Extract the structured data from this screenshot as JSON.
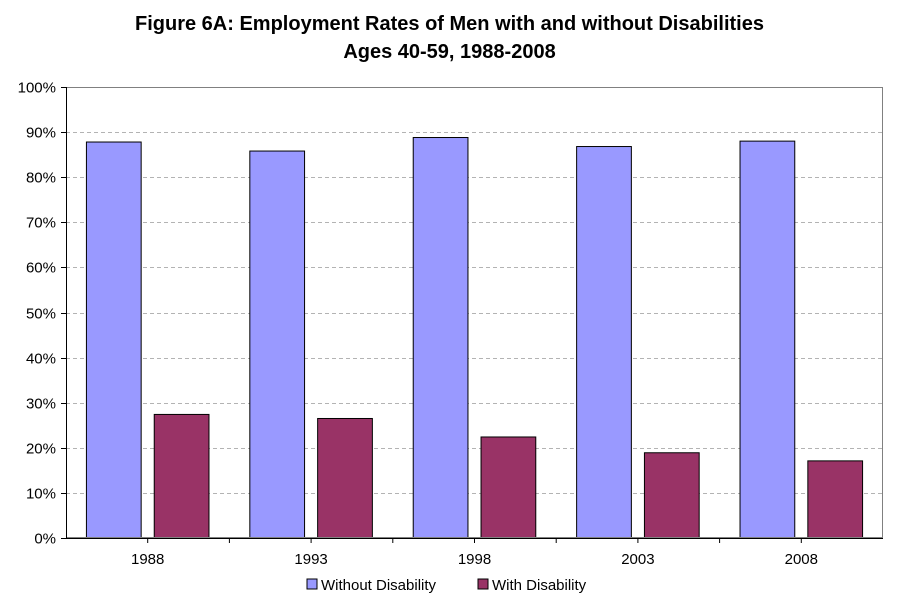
{
  "chart_data": {
    "type": "bar",
    "title": "Figure 6A: Employment Rates of Men with and without Disabilities",
    "subtitle": "Ages 40-59, 1988-2008",
    "categories": [
      "1988",
      "1993",
      "1998",
      "2003",
      "2008"
    ],
    "series": [
      {
        "name": "Without Disability",
        "color": "#9999ff",
        "values": [
          87.8,
          85.8,
          88.8,
          86.8,
          88.0
        ]
      },
      {
        "name": "With Disability",
        "color": "#993366",
        "values": [
          27.4,
          26.5,
          22.4,
          18.9,
          17.1
        ]
      }
    ],
    "ylim": [
      0,
      100
    ],
    "yticks": [
      0,
      10,
      20,
      30,
      40,
      50,
      60,
      70,
      80,
      90,
      100
    ],
    "ytick_labels": [
      "0%",
      "10%",
      "20%",
      "30%",
      "40%",
      "50%",
      "60%",
      "70%",
      "80%",
      "90%",
      "100%"
    ],
    "grid": true,
    "legend_position": "bottom"
  }
}
